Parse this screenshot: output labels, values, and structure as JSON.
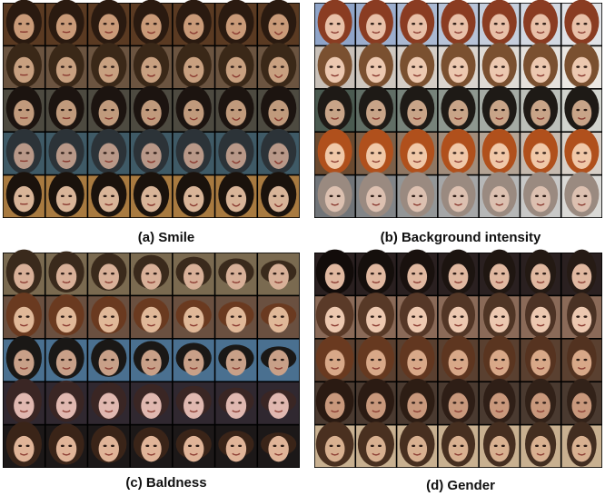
{
  "panels": [
    {
      "caption": "(a) Smile"
    },
    {
      "caption": "(b) Background intensity"
    },
    {
      "caption": "(c) Baldness"
    },
    {
      "caption": "(d) Gender"
    }
  ]
}
